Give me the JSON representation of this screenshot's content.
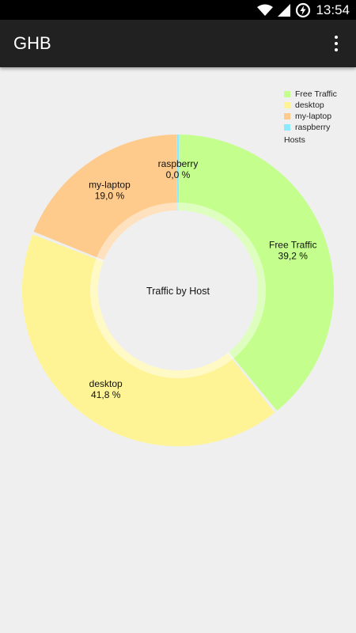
{
  "status_bar": {
    "time": "13:54",
    "icons": [
      "wifi-icon",
      "signal-icon",
      "battery-charging-icon"
    ]
  },
  "app_bar": {
    "title": "GHB",
    "menu_icon": "overflow-menu-icon"
  },
  "chart_data": {
    "type": "pie",
    "title": "Traffic by Host",
    "legend_title": "Hosts",
    "legend_position": "top-right",
    "slices": [
      {
        "label": "Free Traffic",
        "value": 39.2,
        "display": "39,2 %",
        "color": "#c4fe8c"
      },
      {
        "label": "desktop",
        "value": 41.8,
        "display": "41,8 %",
        "color": "#fef496"
      },
      {
        "label": "my-laptop",
        "value": 19.0,
        "display": "19,0 %",
        "color": "#fecb8c"
      },
      {
        "label": "raspberry",
        "value": 0.0,
        "display": "0,0 %",
        "color": "#8ceafe"
      }
    ]
  }
}
